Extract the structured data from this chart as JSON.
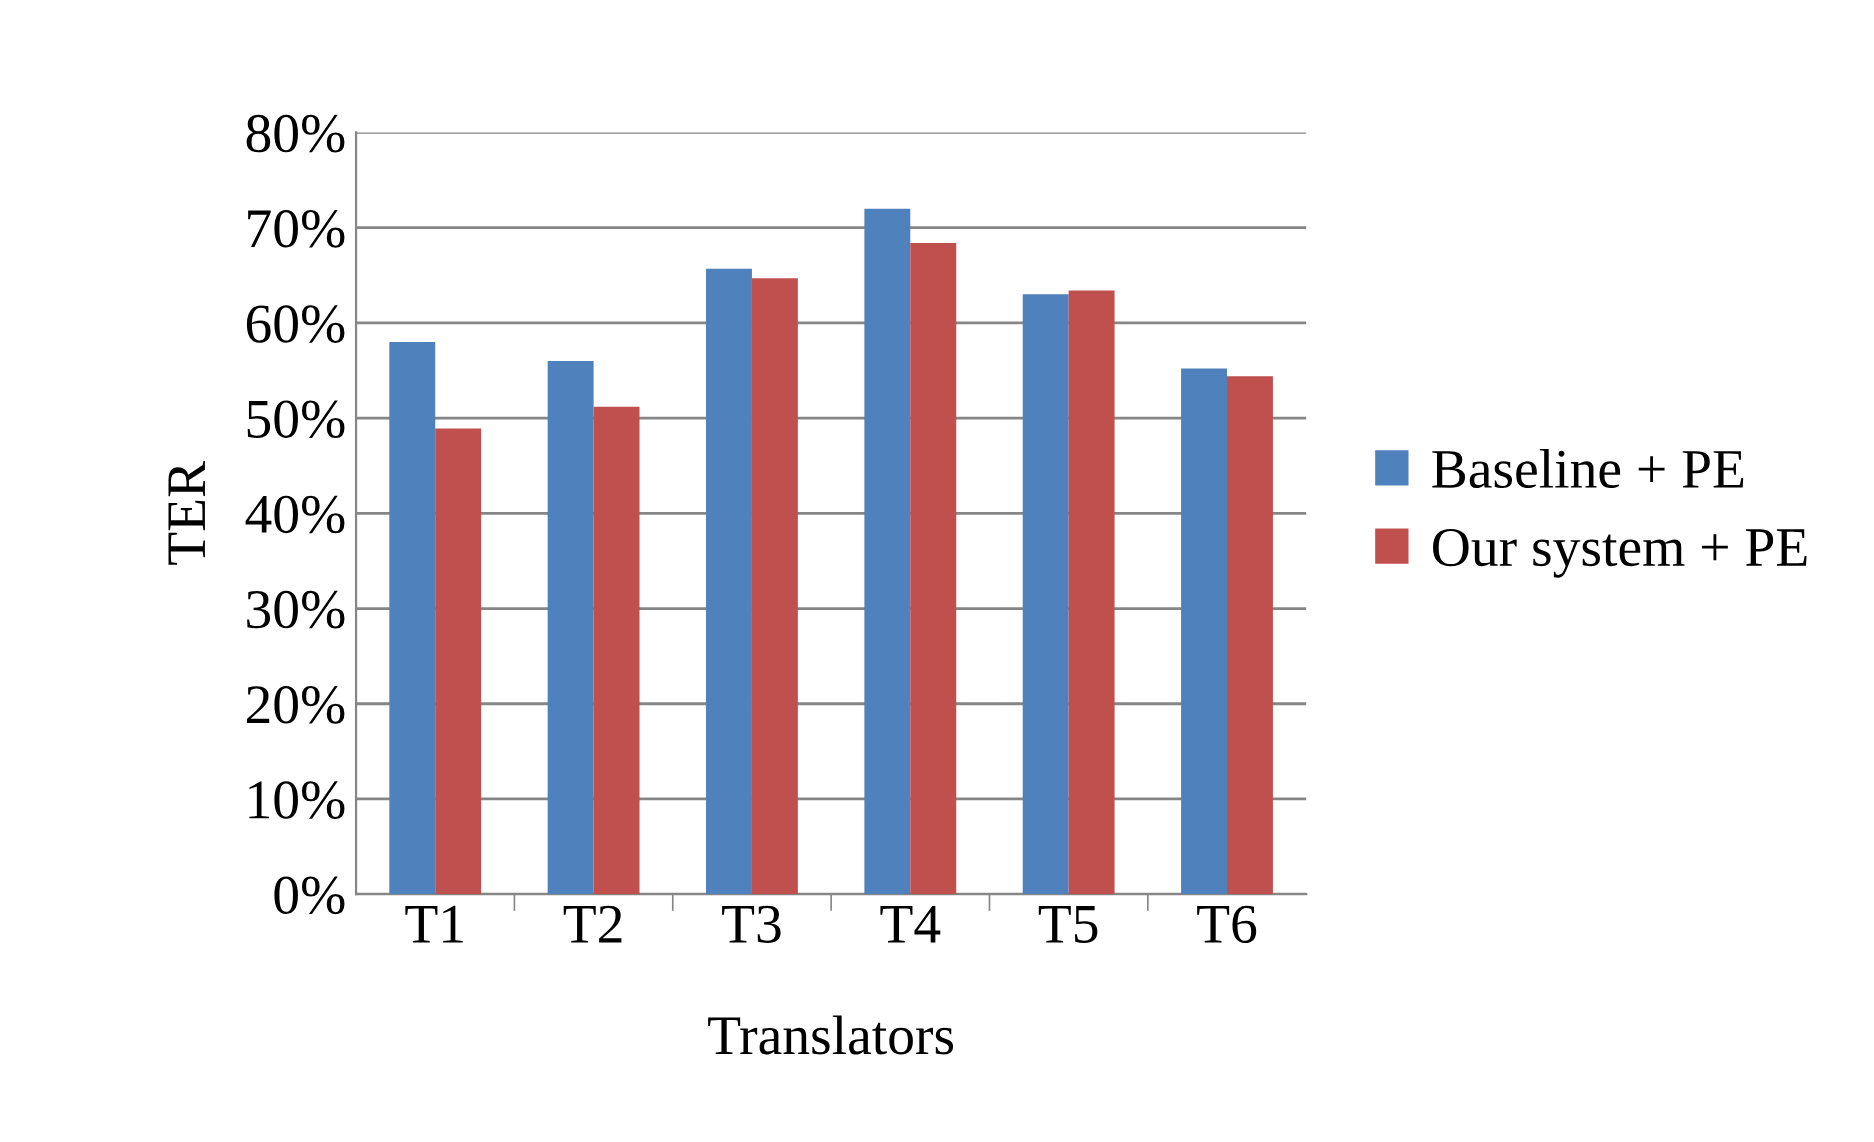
{
  "chart_data": {
    "type": "bar",
    "xlabel": "Translators",
    "ylabel": "TER",
    "categories": [
      "T1",
      "T2",
      "T3",
      "T4",
      "T5",
      "T6"
    ],
    "series": [
      {
        "name": "Baseline + PE",
        "color": "#4f81bd",
        "values": [
          58.0,
          56.0,
          65.7,
          72.0,
          63.0,
          55.2
        ]
      },
      {
        "name": "Our system + PE",
        "color": "#c0504d",
        "values": [
          48.9,
          51.2,
          64.7,
          68.4,
          63.4,
          54.4
        ]
      }
    ],
    "ylim": [
      0,
      80
    ],
    "yticks": [
      {
        "value": 0,
        "label": "0%"
      },
      {
        "value": 10,
        "label": "10%"
      },
      {
        "value": 20,
        "label": "20%"
      },
      {
        "value": 30,
        "label": "30%"
      },
      {
        "value": 40,
        "label": "40%"
      },
      {
        "value": 50,
        "label": "50%"
      },
      {
        "value": 60,
        "label": "60%"
      },
      {
        "value": 70,
        "label": "70%"
      },
      {
        "value": 80,
        "label": "80%"
      }
    ],
    "grid": "y",
    "legend": "right"
  }
}
